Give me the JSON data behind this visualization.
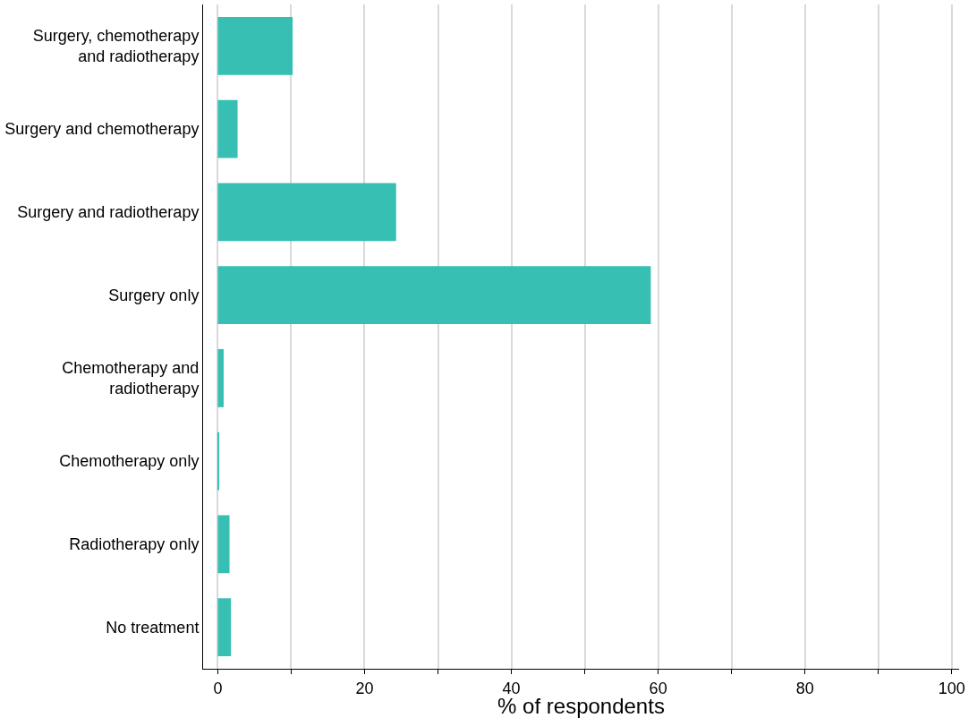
{
  "chart_data": {
    "type": "bar",
    "orientation": "horizontal",
    "xlabel": "% of respondents",
    "categories": [
      "Surgery, chemotherapy\nand radiotherapy",
      "Surgery and chemotherapy",
      "Surgery and radiotherapy",
      "Surgery only",
      "Chemotherapy and\nradiotherapy",
      "Chemotherapy only",
      "Radiotherapy only",
      "No treatment"
    ],
    "values": [
      10.2,
      2.7,
      24.3,
      59.0,
      0.8,
      0.1,
      1.6,
      1.8
    ],
    "color": "#37bfb3",
    "xlim": [
      -2,
      101
    ],
    "xticks": [
      0,
      {
        "value": 10,
        "label": null
      },
      20,
      {
        "value": 30,
        "label": null
      },
      40,
      {
        "value": 50,
        "label": null
      },
      60,
      {
        "value": 70,
        "label": null
      },
      80,
      {
        "value": 90,
        "label": null
      },
      100
    ],
    "grid": "x"
  }
}
